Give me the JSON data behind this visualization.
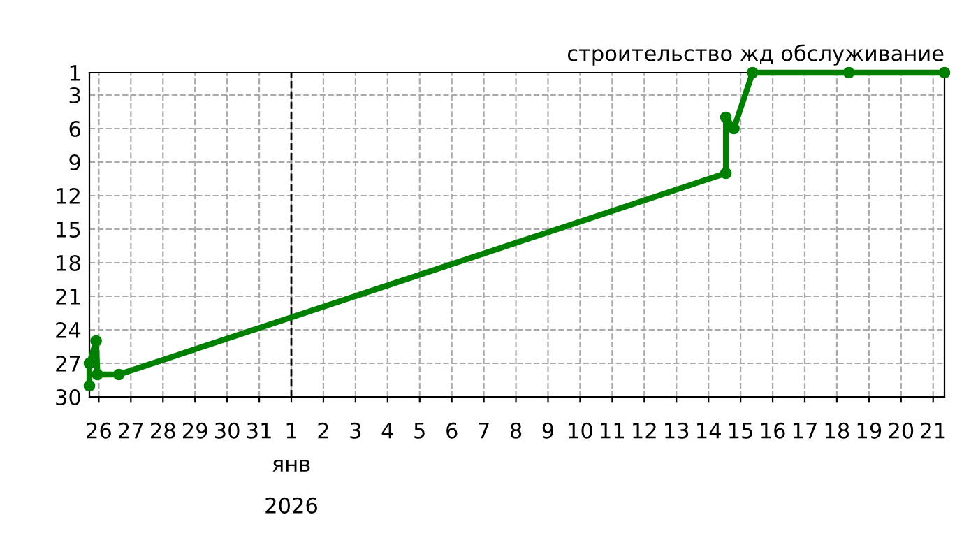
{
  "chart_data": {
    "type": "line",
    "title": "строительство жд обслуживание",
    "series": [
      {
        "color": "#008000",
        "x": [
          "2025-12-25T17:00",
          "2025-12-25T17:00",
          "2025-12-25T22:00",
          "2025-12-25T23:00",
          "2025-12-26T15:00",
          "2026-01-14T13:00",
          "2026-01-14T13:00",
          "2026-01-14T19:00",
          "2026-01-15T09:00",
          "2026-01-18T09:00",
          "2026-01-21T08:30"
        ],
        "values": [
          29,
          27,
          25,
          28,
          28,
          10,
          5,
          6,
          1,
          1,
          1
        ]
      }
    ],
    "xlim": [
      "2025-12-25T17:00",
      "2026-01-21T08:30"
    ],
    "xlabel": "янв\n2026",
    "xticks": [
      {
        "value": "2025-12-26",
        "label": "26"
      },
      {
        "value": "2025-12-27",
        "label": "27"
      },
      {
        "value": "2025-12-28",
        "label": "28"
      },
      {
        "value": "2025-12-29",
        "label": "29"
      },
      {
        "value": "2025-12-30",
        "label": "30"
      },
      {
        "value": "2025-12-31",
        "label": "31"
      },
      {
        "value": "2026-01-01",
        "label": "1"
      },
      {
        "value": "2026-01-02",
        "label": "2"
      },
      {
        "value": "2026-01-03",
        "label": "3"
      },
      {
        "value": "2026-01-04",
        "label": "4"
      },
      {
        "value": "2026-01-05",
        "label": "5"
      },
      {
        "value": "2026-01-06",
        "label": "6"
      },
      {
        "value": "2026-01-07",
        "label": "7"
      },
      {
        "value": "2026-01-08",
        "label": "8"
      },
      {
        "value": "2026-01-09",
        "label": "9"
      },
      {
        "value": "2026-01-10",
        "label": "10"
      },
      {
        "value": "2026-01-11",
        "label": "11"
      },
      {
        "value": "2026-01-12",
        "label": "12"
      },
      {
        "value": "2026-01-13",
        "label": "13"
      },
      {
        "value": "2026-01-14",
        "label": "14"
      },
      {
        "value": "2026-01-15",
        "label": "15"
      },
      {
        "value": "2026-01-16",
        "label": "16"
      },
      {
        "value": "2026-01-17",
        "label": "17"
      },
      {
        "value": "2026-01-18",
        "label": "18"
      },
      {
        "value": "2026-01-19",
        "label": "19"
      },
      {
        "value": "2026-01-20",
        "label": "20"
      },
      {
        "value": "2026-01-21",
        "label": "21"
      }
    ],
    "ylim": [
      30,
      1
    ],
    "yticks": [
      1,
      3,
      6,
      9,
      12,
      15,
      18,
      21,
      24,
      27,
      30
    ],
    "ref_lines": [
      {
        "axis": "x",
        "value": "2026-01-01",
        "color": "#000000",
        "line_style": "dashed"
      }
    ],
    "grid": true,
    "marker": "circle",
    "line_style": "solid",
    "legend": false
  }
}
